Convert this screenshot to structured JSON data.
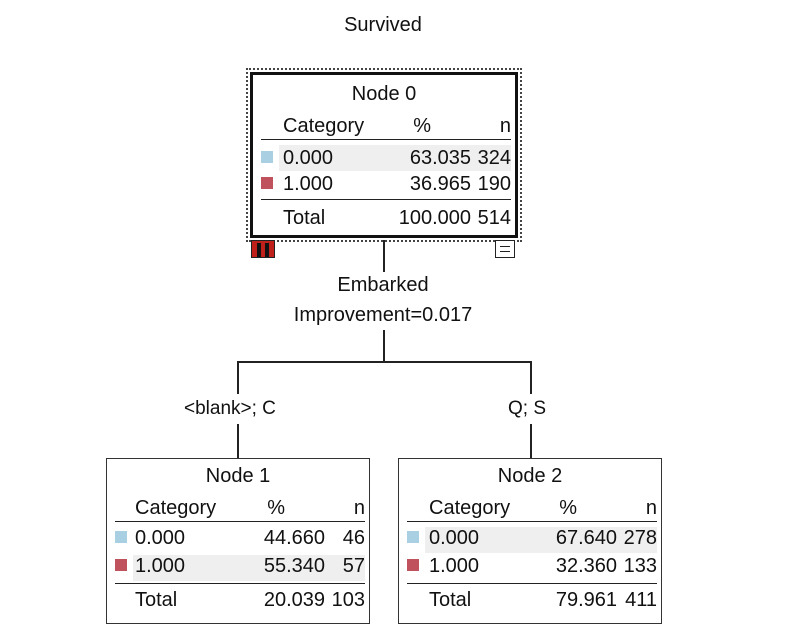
{
  "title": "Survived",
  "split": {
    "variable": "Embarked",
    "improvement": "Improvement=0.017"
  },
  "branches": {
    "left": "<blank>; C",
    "right": "Q; S"
  },
  "headers": {
    "category": "Category",
    "percent": "%",
    "n": "n"
  },
  "colors": {
    "class0": "#a9cfe2",
    "class1": "#c0525e",
    "shade": "#efefef"
  },
  "nodes": [
    {
      "title": "Node 0",
      "rows": [
        {
          "category": "0.000",
          "percent": "63.035",
          "n": "324"
        },
        {
          "category": "1.000",
          "percent": "36.965",
          "n": "190"
        }
      ],
      "total": {
        "label": "Total",
        "percent": "100.000",
        "n": "514"
      }
    },
    {
      "title": "Node 1",
      "rows": [
        {
          "category": "0.000",
          "percent": "44.660",
          "n": "46"
        },
        {
          "category": "1.000",
          "percent": "55.340",
          "n": "57"
        }
      ],
      "total": {
        "label": "Total",
        "percent": "20.039",
        "n": "103"
      }
    },
    {
      "title": "Node 2",
      "rows": [
        {
          "category": "0.000",
          "percent": "67.640",
          "n": "278"
        },
        {
          "category": "1.000",
          "percent": "32.360",
          "n": "133"
        }
      ],
      "total": {
        "label": "Total",
        "percent": "79.961",
        "n": "411"
      }
    }
  ]
}
